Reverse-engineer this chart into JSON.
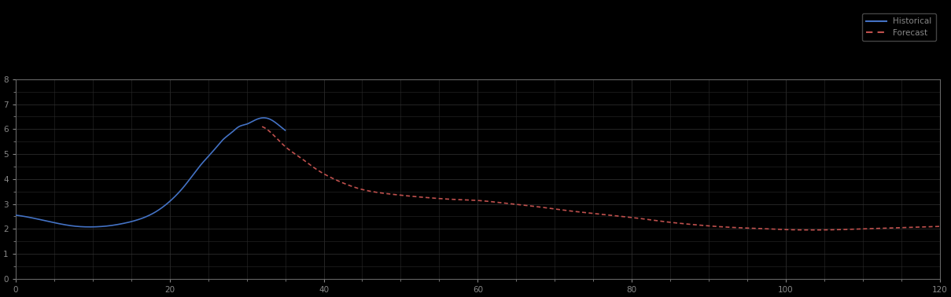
{
  "background_color": "#000000",
  "plot_bg_color": "#000000",
  "grid_color": "#2a2a2a",
  "axis_color": "#666666",
  "tick_color": "#888888",
  "blue_line_color": "#4472C4",
  "red_line_color": "#C0504D",
  "legend_label_blue": "Historical",
  "legend_label_red": "Forecast",
  "xlim": [
    0,
    120
  ],
  "ylim": [
    0,
    8
  ],
  "x_ticks": [
    0,
    20,
    40,
    60,
    80,
    100,
    120
  ],
  "y_ticks": [
    0,
    1,
    2,
    3,
    4,
    5,
    6,
    7,
    8
  ],
  "figsize": [
    12.09,
    3.78
  ],
  "dpi": 100,
  "blue_x": [
    0,
    2,
    5,
    8,
    10,
    12,
    14,
    16,
    18,
    20,
    22,
    24,
    25,
    26,
    27,
    28,
    29,
    30,
    31,
    32,
    33,
    34,
    35
  ],
  "blue_y": [
    2.55,
    2.45,
    2.25,
    2.1,
    2.08,
    2.12,
    2.22,
    2.38,
    2.65,
    3.1,
    3.75,
    4.55,
    4.9,
    5.25,
    5.6,
    5.85,
    6.1,
    6.2,
    6.35,
    6.45,
    6.4,
    6.2,
    5.95
  ],
  "red_x": [
    32,
    33,
    34,
    35,
    37,
    39,
    41,
    43,
    45,
    48,
    51,
    54,
    57,
    60,
    63,
    66,
    69,
    72,
    75,
    78,
    81,
    84,
    87,
    90,
    93,
    96,
    99,
    102,
    105,
    108,
    111,
    114,
    117,
    120
  ],
  "red_y": [
    6.1,
    5.9,
    5.6,
    5.3,
    4.85,
    4.4,
    4.05,
    3.78,
    3.58,
    3.42,
    3.32,
    3.24,
    3.18,
    3.14,
    3.05,
    2.95,
    2.84,
    2.72,
    2.62,
    2.52,
    2.42,
    2.3,
    2.2,
    2.12,
    2.06,
    2.02,
    1.98,
    1.96,
    1.96,
    1.98,
    2.01,
    2.04,
    2.07,
    2.1
  ]
}
